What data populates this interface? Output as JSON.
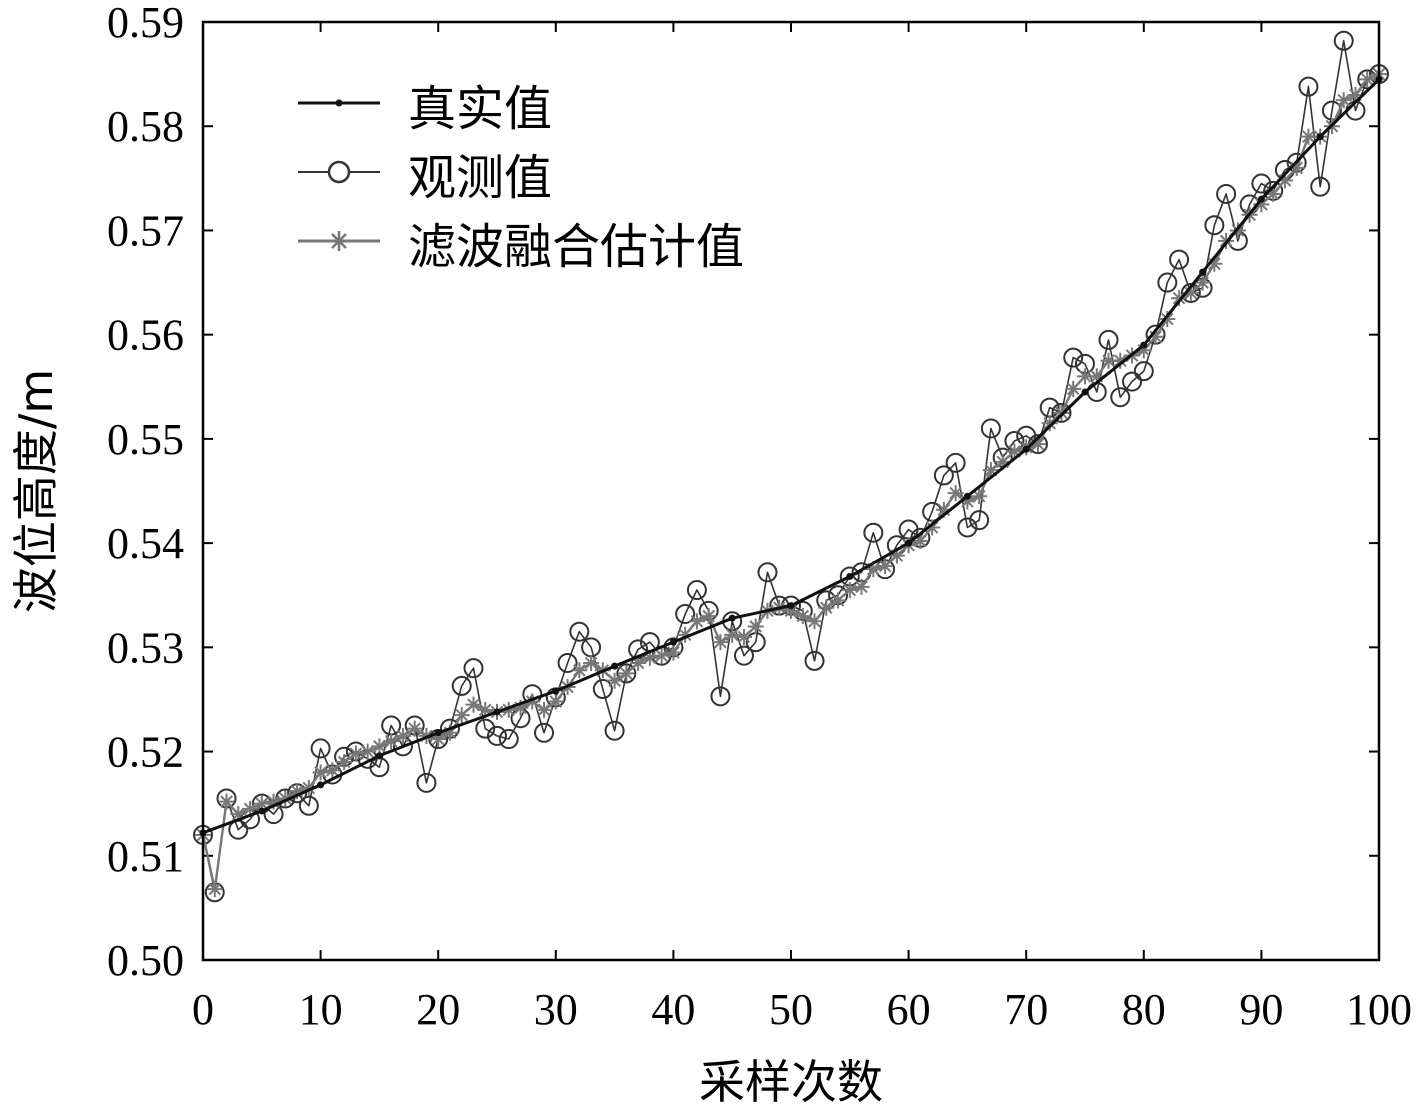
{
  "chart_data": {
    "type": "line",
    "xlabel": "采样次数",
    "ylabel": "波位高度/m",
    "xlim": [
      0,
      100
    ],
    "ylim": [
      0.5,
      0.59
    ],
    "x_ticks": [
      "0",
      "10",
      "20",
      "30",
      "40",
      "50",
      "60",
      "70",
      "80",
      "90",
      "100"
    ],
    "y_ticks": [
      "0.50",
      "0.51",
      "0.52",
      "0.53",
      "0.54",
      "0.55",
      "0.56",
      "0.57",
      "0.58",
      "0.59"
    ],
    "grid": false,
    "legend_position": "top-left",
    "series": [
      {
        "name": "真实值",
        "marker": "dot",
        "color": "#111111",
        "x": [
          0,
          5,
          10,
          15,
          20,
          25,
          30,
          35,
          40,
          45,
          50,
          55,
          60,
          65,
          70,
          75,
          80,
          85,
          90,
          95,
          100
        ],
        "y": [
          0.5122,
          0.5143,
          0.5168,
          0.5196,
          0.5218,
          0.5238,
          0.5258,
          0.5282,
          0.5305,
          0.5328,
          0.534,
          0.5368,
          0.54,
          0.5445,
          0.549,
          0.5545,
          0.559,
          0.566,
          0.573,
          0.579,
          0.5845
        ]
      },
      {
        "name": "观测值",
        "marker": "circle",
        "color": "#333333",
        "x": [
          0,
          1,
          2,
          3,
          4,
          5,
          6,
          7,
          8,
          9,
          10,
          11,
          12,
          13,
          14,
          15,
          16,
          17,
          18,
          19,
          20,
          21,
          22,
          23,
          24,
          25,
          26,
          27,
          28,
          29,
          30,
          31,
          32,
          33,
          34,
          35,
          36,
          37,
          38,
          39,
          40,
          41,
          42,
          43,
          44,
          45,
          46,
          47,
          48,
          49,
          50,
          51,
          52,
          53,
          54,
          55,
          56,
          57,
          58,
          59,
          60,
          61,
          62,
          63,
          64,
          65,
          66,
          67,
          68,
          69,
          70,
          71,
          72,
          73,
          74,
          75,
          76,
          77,
          78,
          79,
          80,
          81,
          82,
          83,
          84,
          85,
          86,
          87,
          88,
          89,
          90,
          91,
          92,
          93,
          94,
          95,
          96,
          97,
          98,
          99,
          100
        ],
        "y": [
          0.512,
          0.5065,
          0.5155,
          0.5125,
          0.5135,
          0.515,
          0.514,
          0.5155,
          0.516,
          0.5148,
          0.5203,
          0.5178,
          0.5195,
          0.52,
          0.5193,
          0.5185,
          0.5225,
          0.5205,
          0.5225,
          0.517,
          0.5212,
          0.5222,
          0.5263,
          0.528,
          0.5222,
          0.5215,
          0.5212,
          0.5232,
          0.5255,
          0.5218,
          0.5252,
          0.5285,
          0.5315,
          0.53,
          0.526,
          0.522,
          0.5275,
          0.5298,
          0.5305,
          0.5292,
          0.53,
          0.5332,
          0.5355,
          0.5335,
          0.5253,
          0.5325,
          0.5292,
          0.5305,
          0.5372,
          0.534,
          0.534,
          0.5335,
          0.5287,
          0.5345,
          0.535,
          0.5368,
          0.5372,
          0.541,
          0.5375,
          0.5398,
          0.5413,
          0.5405,
          0.543,
          0.5465,
          0.5477,
          0.5415,
          0.5422,
          0.551,
          0.5482,
          0.5498,
          0.5503,
          0.5495,
          0.553,
          0.5525,
          0.5578,
          0.5572,
          0.5545,
          0.5595,
          0.554,
          0.5555,
          0.5565,
          0.56,
          0.565,
          0.5672,
          0.564,
          0.5645,
          0.5705,
          0.5735,
          0.569,
          0.5725,
          0.5745,
          0.5738,
          0.5758,
          0.5765,
          0.5838,
          0.5742,
          0.5815,
          0.5882,
          0.5815,
          0.5845,
          0.585
        ]
      },
      {
        "name": "滤波融合估计值",
        "marker": "star",
        "color": "#777777",
        "x": [
          0,
          1,
          2,
          3,
          4,
          5,
          6,
          7,
          8,
          9,
          10,
          11,
          12,
          13,
          14,
          15,
          16,
          17,
          18,
          19,
          20,
          21,
          22,
          23,
          24,
          25,
          26,
          27,
          28,
          29,
          30,
          31,
          32,
          33,
          34,
          35,
          36,
          37,
          38,
          39,
          40,
          41,
          42,
          43,
          44,
          45,
          46,
          47,
          48,
          49,
          50,
          51,
          52,
          53,
          54,
          55,
          56,
          57,
          58,
          59,
          60,
          61,
          62,
          63,
          64,
          65,
          66,
          67,
          68,
          69,
          70,
          71,
          72,
          73,
          74,
          75,
          76,
          77,
          78,
          79,
          80,
          81,
          82,
          83,
          84,
          85,
          86,
          87,
          88,
          89,
          90,
          91,
          92,
          93,
          94,
          95,
          96,
          97,
          98,
          99,
          100
        ],
        "y": [
          0.512,
          0.5068,
          0.5152,
          0.514,
          0.5145,
          0.515,
          0.5152,
          0.5155,
          0.5162,
          0.5165,
          0.518,
          0.5182,
          0.519,
          0.5198,
          0.52,
          0.5205,
          0.521,
          0.5215,
          0.5222,
          0.5215,
          0.5212,
          0.5218,
          0.5235,
          0.5245,
          0.524,
          0.5238,
          0.524,
          0.5242,
          0.5248,
          0.524,
          0.5248,
          0.5262,
          0.5278,
          0.5285,
          0.5278,
          0.5268,
          0.5275,
          0.5285,
          0.529,
          0.5292,
          0.5295,
          0.5312,
          0.5325,
          0.533,
          0.5305,
          0.5312,
          0.531,
          0.532,
          0.5335,
          0.5338,
          0.5335,
          0.533,
          0.5325,
          0.5338,
          0.5345,
          0.5355,
          0.5358,
          0.5375,
          0.5378,
          0.5388,
          0.5398,
          0.5402,
          0.5415,
          0.5432,
          0.5448,
          0.544,
          0.5445,
          0.547,
          0.5478,
          0.5488,
          0.5492,
          0.5495,
          0.5515,
          0.5525,
          0.5548,
          0.556,
          0.556,
          0.5575,
          0.5575,
          0.558,
          0.5585,
          0.5598,
          0.5615,
          0.5635,
          0.564,
          0.565,
          0.5668,
          0.569,
          0.57,
          0.5715,
          0.5725,
          0.5735,
          0.5748,
          0.576,
          0.579,
          0.579,
          0.58,
          0.5825,
          0.583,
          0.5845,
          0.585
        ]
      }
    ]
  }
}
